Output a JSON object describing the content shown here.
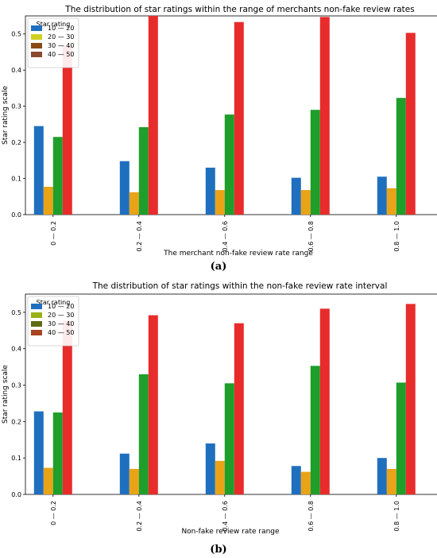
{
  "charts": [
    {
      "title": "The distribution of star ratings within the range of merchants non-fake review rates",
      "xlabel": "The merchant non-fake review rate range",
      "ylabel": "Star rating scale",
      "caption": "(a)"
    },
    {
      "title": "The distribution of star ratings within the non-fake review rate interval",
      "xlabel": "Non-fake review rate range",
      "ylabel": "Star rating scale",
      "caption": "(b)"
    }
  ],
  "chart_data": [
    {
      "type": "bar",
      "title": "The distribution of star ratings within the range of merchants non-fake review rates",
      "xlabel": "The merchant non-fake review rate range",
      "ylabel": "Star rating scale",
      "categories": [
        "0 — 0.2",
        "0.2 — 0.4",
        "0.4 — 0.6",
        "0.6 — 0.8",
        "0.8 — 1.0"
      ],
      "ylim": [
        0,
        0.55
      ],
      "yticks": [
        0.0,
        0.1,
        0.2,
        0.3,
        0.4,
        0.5
      ],
      "ytick_labels": [
        "0.0",
        "0.1",
        "0.2",
        "0.3",
        "0.4",
        "0.5"
      ],
      "grid": false,
      "legend": {
        "title": "Star rating",
        "position": "top-left"
      },
      "series": [
        {
          "name": "10 — 20",
          "color": "#1f6fbf",
          "values": [
            0.245,
            0.148,
            0.13,
            0.102,
            0.105
          ]
        },
        {
          "name": "20 — 30",
          "color": "#e8a317",
          "values": [
            0.077,
            0.062,
            0.068,
            0.068,
            0.073
          ]
        },
        {
          "name": "30 — 40",
          "color": "#1f9e2a",
          "values": [
            0.215,
            0.242,
            0.277,
            0.29,
            0.323
          ]
        },
        {
          "name": "40 — 50",
          "color": "#e82c2c",
          "values": [
            0.468,
            0.55,
            0.533,
            0.547,
            0.503
          ]
        }
      ],
      "legend_colors": [
        "#1f6fbf",
        "#d0d020",
        "#8a4a14",
        "#8a4a30"
      ]
    },
    {
      "type": "bar",
      "title": "The distribution of star ratings within the non-fake review rate interval",
      "xlabel": "Non-fake review rate range",
      "ylabel": "Star rating scale",
      "categories": [
        "0 — 0.2",
        "0.2 — 0.4",
        "0.4 — 0.6",
        "0.6 — 0.8",
        "0.8 — 1.0"
      ],
      "ylim": [
        0,
        0.55
      ],
      "yticks": [
        0.0,
        0.1,
        0.2,
        0.3,
        0.4,
        0.5
      ],
      "ytick_labels": [
        "0.0",
        "0.1",
        "0.2",
        "0.3",
        "0.4",
        "0.5"
      ],
      "grid": false,
      "legend": {
        "title": "Star rating",
        "position": "top-left"
      },
      "series": [
        {
          "name": "10 — 20",
          "color": "#1f6fbf",
          "values": [
            0.228,
            0.112,
            0.14,
            0.078,
            0.1
          ]
        },
        {
          "name": "20 — 30",
          "color": "#e8a317",
          "values": [
            0.073,
            0.07,
            0.092,
            0.062,
            0.07
          ]
        },
        {
          "name": "30 — 40",
          "color": "#1f9e2a",
          "values": [
            0.225,
            0.33,
            0.305,
            0.353,
            0.307
          ]
        },
        {
          "name": "40 — 50",
          "color": "#e82c2c",
          "values": [
            0.477,
            0.492,
            0.47,
            0.51,
            0.523
          ]
        }
      ],
      "legend_colors": [
        "#1f6fbf",
        "#9ab014",
        "#5f6a12",
        "#a84420"
      ]
    }
  ]
}
